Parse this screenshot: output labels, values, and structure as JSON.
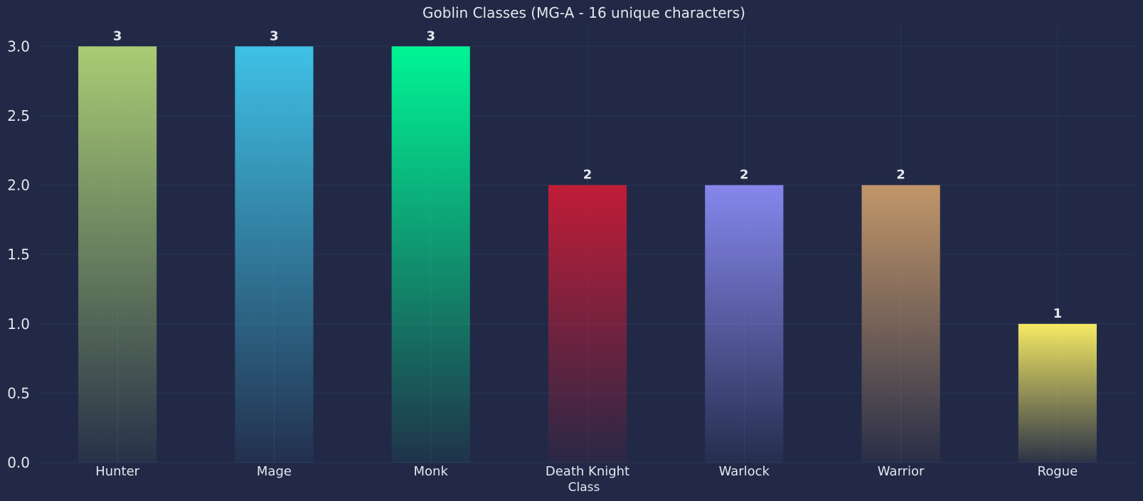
{
  "chart_data": {
    "type": "bar",
    "title": "Goblin Classes (MG-A - 16 unique characters)",
    "xlabel": "Class",
    "ylabel": "",
    "categories": [
      "Hunter",
      "Mage",
      "Monk",
      "Death Knight",
      "Warlock",
      "Warrior",
      "Rogue"
    ],
    "values": [
      3,
      3,
      3,
      2,
      2,
      2,
      1
    ],
    "colors": [
      "#a9cc74",
      "#3fc1e6",
      "#00f595",
      "#c11c37",
      "#8686ec",
      "#c29669",
      "#f5ea63"
    ],
    "ylim": [
      0,
      3.15
    ],
    "yticks": [
      "0.0",
      "0.5",
      "1.0",
      "1.5",
      "2.0",
      "2.5",
      "3.0"
    ],
    "grid": true,
    "background": "#212946"
  }
}
